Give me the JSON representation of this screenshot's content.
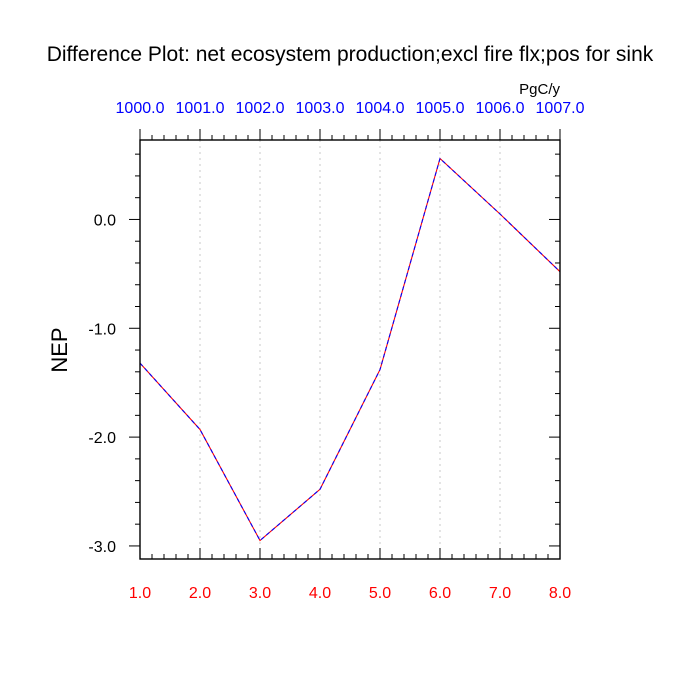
{
  "chart_data": {
    "type": "line",
    "title": "Difference Plot: net ecosystem production;excl fire flx;pos for sink",
    "units": "PgC/y",
    "ylabel": "NEP",
    "xlabel": "",
    "x": [
      1.0,
      2.0,
      3.0,
      4.0,
      5.0,
      6.0,
      7.0,
      8.0
    ],
    "xlim": [
      1.0,
      8.0
    ],
    "ylim": [
      -3.12,
      0.73
    ],
    "x_tick_labels": [
      "1.0",
      "2.0",
      "3.0",
      "4.0",
      "5.0",
      "6.0",
      "7.0",
      "8.0"
    ],
    "top_tick_labels": [
      "1000.0",
      "1001.0",
      "1002.0",
      "1003.0",
      "1004.0",
      "1005.0",
      "1006.0",
      "1007.0"
    ],
    "y_ticks": [
      0.0,
      -1.0,
      -2.0,
      -3.0
    ],
    "y_tick_labels": [
      "0.0",
      "-1.0",
      "-2.0",
      "-3.0"
    ],
    "series": [
      {
        "values": [
          -1.32,
          -1.93,
          -2.95,
          -2.48,
          -1.38,
          0.56,
          0.05,
          -0.48
        ]
      }
    ],
    "grid": "vertical dotted",
    "line_style": "dashed",
    "colors": {
      "line_outer": "#ff0000",
      "line_inner": "#0000ff",
      "bottom_tick_labels": "#ff0000",
      "top_tick_labels": "#0000ff",
      "grid": "#c8c8c8",
      "axes": "#000000"
    }
  }
}
